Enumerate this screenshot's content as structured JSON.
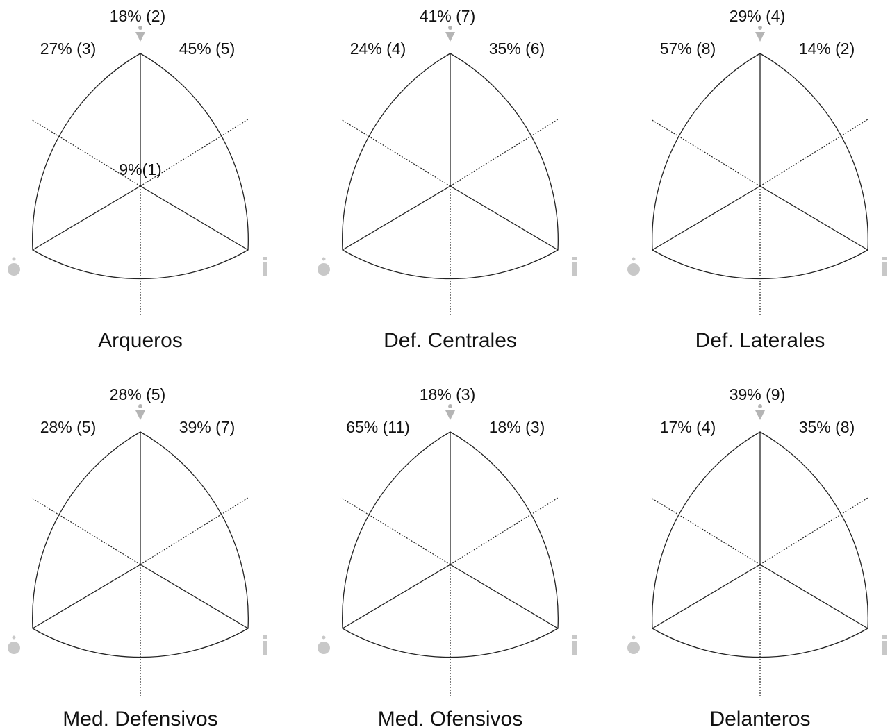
{
  "panels": [
    {
      "title": "Arqueros",
      "top": "18% (2)",
      "left": "27% (3)",
      "right": "45% (5)",
      "center": "9%(1)"
    },
    {
      "title": "Def. Centrales",
      "top": "41% (7)",
      "left": "24% (4)",
      "right": "35% (6)"
    },
    {
      "title": "Def. Laterales",
      "top": "29% (4)",
      "left": "57% (8)",
      "right": "14% (2)"
    },
    {
      "title": "Med. Defensivos",
      "top": "28% (5)",
      "left": "28% (5)",
      "right": "39% (7)"
    },
    {
      "title": "Med. Ofensivos",
      "top": "18% (3)",
      "left": "65% (11)",
      "right": "18% (3)"
    },
    {
      "title": "Delanteros",
      "top": "39% (9)",
      "left": "17% (4)",
      "right": "35% (8)"
    }
  ]
}
